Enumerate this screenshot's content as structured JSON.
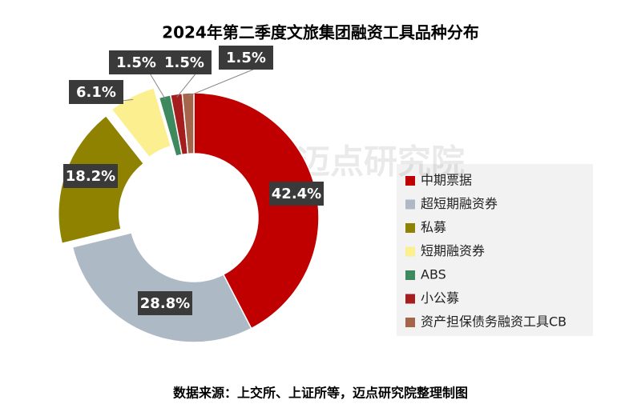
{
  "chart_data": {
    "type": "donut",
    "title": "2024年第二季度文旅集团融资工具品种分布",
    "categories": [
      "中期票据",
      "超短期融资券",
      "私募",
      "短期融资券",
      "ABS",
      "小公募",
      "资产担保债务融资工具CB"
    ],
    "values": [
      42.4,
      28.8,
      18.2,
      6.1,
      1.5,
      1.5,
      1.5
    ],
    "value_labels": [
      "42.4%",
      "28.8%",
      "18.2%",
      "6.1%",
      "1.5%",
      "1.5%",
      "1.5%"
    ],
    "colors": [
      "#c00000",
      "#adb9c4",
      "#8f8200",
      "#fbef8f",
      "#3e8a5e",
      "#a61d1d",
      "#a5654a"
    ],
    "exploded": [
      false,
      false,
      true,
      true,
      false,
      false,
      false
    ],
    "legend": "right",
    "source": "数据来源：上交所、上证所等，迈点研究院整理制图",
    "watermark": "迈点研究院"
  }
}
